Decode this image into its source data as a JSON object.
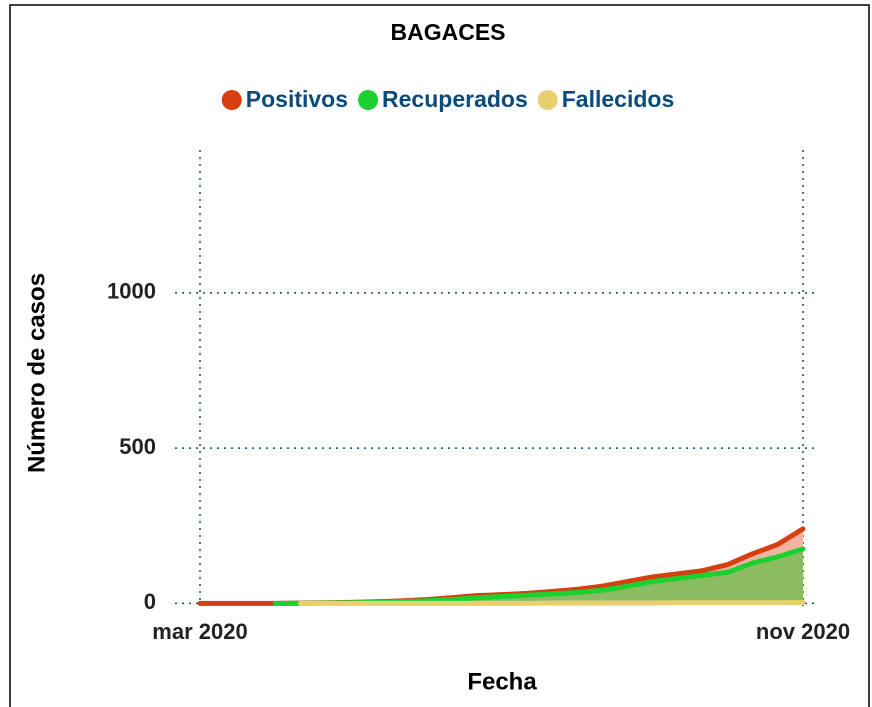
{
  "chart_data": {
    "type": "area",
    "title": "BAGACES",
    "xlabel": "Fecha",
    "ylabel": "Número de casos",
    "categories": [
      "mar 2020",
      null,
      null,
      null,
      null,
      null,
      null,
      null,
      null,
      null,
      null,
      null,
      null,
      null,
      null,
      null,
      null,
      null,
      null,
      null,
      null,
      null,
      null,
      null,
      "nov 2020"
    ],
    "series": [
      {
        "name": "Positivos",
        "color": "#d64010",
        "fill": "#f3b3a2",
        "values": [
          0,
          0,
          0,
          0,
          1,
          2,
          3,
          5,
          8,
          12,
          18,
          25,
          28,
          32,
          38,
          45,
          55,
          70,
          85,
          95,
          105,
          125,
          160,
          190,
          240
        ]
      },
      {
        "name": "Recuperados",
        "color": "#1bd12f",
        "fill": "#8bbb62",
        "values": [
          null,
          null,
          null,
          0,
          0,
          1,
          2,
          3,
          5,
          8,
          12,
          18,
          22,
          26,
          30,
          35,
          42,
          55,
          70,
          80,
          90,
          100,
          130,
          150,
          175
        ]
      },
      {
        "name": "Fallecidos",
        "color": "#e8d070",
        "fill": "#e8d070",
        "values": [
          null,
          null,
          null,
          null,
          0,
          0,
          0,
          0,
          0,
          0,
          0,
          0,
          0,
          0,
          1,
          1,
          1,
          1,
          1,
          2,
          2,
          2,
          2,
          2,
          3
        ]
      }
    ],
    "ylim": [
      -15,
      1460
    ],
    "yticks": [
      0,
      500,
      1000
    ],
    "grid": true
  }
}
